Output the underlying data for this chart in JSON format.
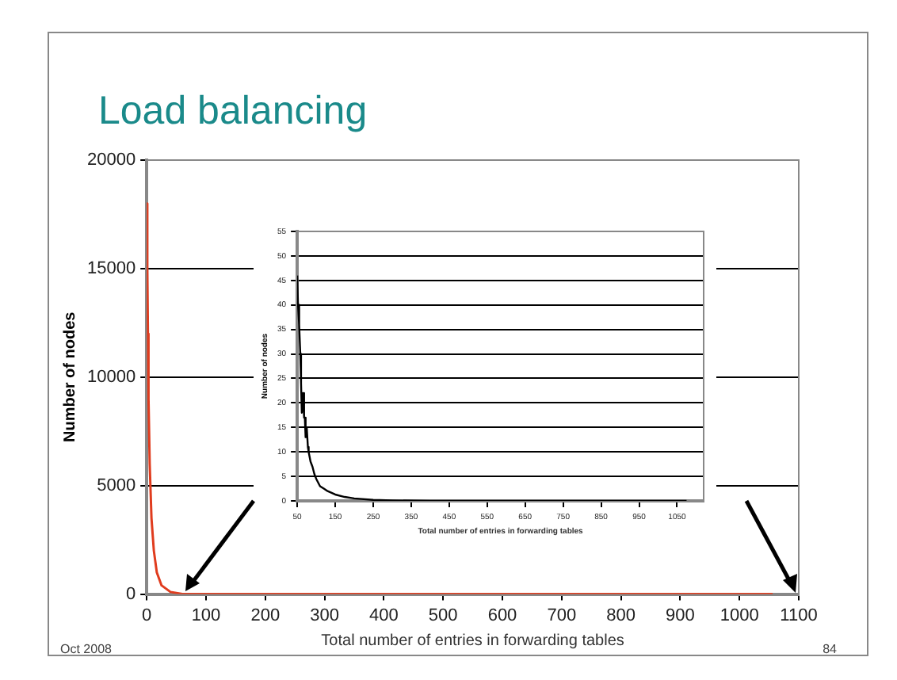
{
  "chart_data": [
    {
      "type": "line",
      "title": "Load balancing",
      "xlabel": "Total number of entries in forwarding tables",
      "ylabel": "Number of nodes",
      "annotations": [
        "Oct 2008",
        "84"
      ],
      "x": [
        0,
        1,
        2,
        3,
        5,
        8,
        12,
        17,
        25,
        40,
        60,
        1056
      ],
      "series": [
        {
          "color": "#e03c1e",
          "values": [
            18000,
            15000,
            12000,
            9000,
            6000,
            3500,
            2000,
            1000,
            400,
            100,
            0,
            0
          ]
        }
      ],
      "xlim": [
        0,
        1100
      ],
      "xticks": [
        0,
        100,
        200,
        300,
        400,
        500,
        600,
        700,
        800,
        900,
        1000,
        1100
      ],
      "ylim": [
        0,
        20000
      ],
      "yticks": [
        0,
        5000,
        10000,
        15000,
        20000
      ],
      "grid": "y",
      "legend": false,
      "marker": "none"
    },
    {
      "type": "line",
      "xlabel": "Total number of entries in forwarding tables",
      "ylabel": "Number of nodes",
      "x": [
        50,
        52,
        55,
        58,
        60,
        62,
        65,
        68,
        70,
        72,
        75,
        78,
        80,
        85,
        90,
        95,
        100,
        110,
        120,
        130,
        150,
        175,
        200,
        250,
        300,
        400,
        1075
      ],
      "series": [
        {
          "color": "#000000",
          "values": [
            46,
            40,
            36,
            30,
            24,
            18,
            22,
            17,
            17,
            13,
            15,
            11,
            10,
            8,
            7,
            5.5,
            4.5,
            3,
            2.5,
            2,
            1.3,
            0.8,
            0.5,
            0.2,
            0.1,
            0,
            0
          ]
        }
      ],
      "xlim": [
        50,
        1120
      ],
      "xticks": [
        50,
        150,
        250,
        350,
        450,
        550,
        650,
        750,
        850,
        950,
        1050
      ],
      "ylim": [
        0,
        55
      ],
      "yticks": [
        0,
        5,
        10,
        15,
        20,
        25,
        30,
        35,
        40,
        45,
        50,
        55
      ],
      "grid": "y",
      "legend": false,
      "marker": "none"
    }
  ]
}
